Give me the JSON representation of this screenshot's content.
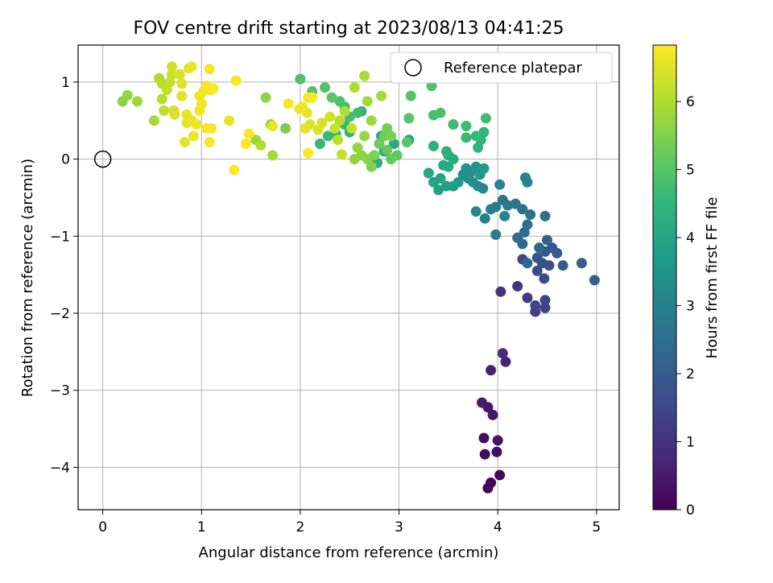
{
  "chart_data": {
    "type": "scatter",
    "title": "FOV centre drift starting at 2023/08/13 04:41:25",
    "xlabel": "Angular distance from reference (arcmin)",
    "ylabel": "Rotation from reference (arcmin)",
    "xlim": [
      -0.25,
      5.23
    ],
    "ylim": [
      -4.55,
      1.48
    ],
    "xticks": [
      0,
      1,
      2,
      3,
      4,
      5
    ],
    "yticks": [
      1,
      0,
      -1,
      -2,
      -3,
      -4
    ],
    "xtick_labels": [
      "0",
      "1",
      "2",
      "3",
      "4",
      "5"
    ],
    "ytick_labels": [
      "1",
      "0",
      "−1",
      "−2",
      "−3",
      "−4"
    ],
    "grid": true,
    "legend": {
      "placement": "top-right",
      "label": "Reference platepar"
    },
    "reference_point": {
      "x": 0,
      "y": 0
    },
    "colorbar": {
      "label": "Hours from first FF file",
      "range": [
        0,
        6.83
      ],
      "ticks": [
        0,
        1,
        2,
        3,
        4,
        5,
        6
      ],
      "tick_labels": [
        "0",
        "1",
        "2",
        "3",
        "4",
        "5",
        "6"
      ],
      "colormap": [
        "#440154",
        "#482878",
        "#3e4989",
        "#31688e",
        "#26828e",
        "#1f9e89",
        "#35b779",
        "#6ece58",
        "#b5de2b",
        "#fde725"
      ]
    },
    "series": [
      {
        "points": [
          [
            3.9,
            -4.27,
            0.05
          ],
          [
            3.93,
            -4.2,
            0.1
          ],
          [
            4.02,
            -4.1,
            0.15
          ],
          [
            3.87,
            -3.83,
            0.2
          ],
          [
            3.99,
            -3.8,
            0.25
          ],
          [
            3.86,
            -3.62,
            0.3
          ],
          [
            4.0,
            -3.65,
            0.35
          ],
          [
            3.95,
            -3.32,
            0.4
          ],
          [
            3.9,
            -3.22,
            0.45
          ],
          [
            3.84,
            -3.16,
            0.5
          ],
          [
            3.93,
            -2.74,
            0.6
          ],
          [
            4.08,
            -2.63,
            0.7
          ],
          [
            4.05,
            -2.52,
            0.8
          ],
          [
            4.03,
            -1.72,
            1.0
          ],
          [
            4.2,
            -1.65,
            1.1
          ],
          [
            4.3,
            -1.8,
            1.2
          ],
          [
            4.38,
            -1.98,
            1.3
          ],
          [
            4.48,
            -1.93,
            1.35
          ],
          [
            4.48,
            -1.83,
            1.4
          ],
          [
            4.38,
            -1.9,
            1.45
          ],
          [
            4.25,
            -1.3,
            1.5
          ],
          [
            4.4,
            -1.45,
            1.55
          ],
          [
            4.47,
            -1.55,
            1.6
          ],
          [
            4.52,
            -1.38,
            1.65
          ],
          [
            4.45,
            -1.35,
            1.7
          ],
          [
            4.4,
            -1.28,
            1.75
          ],
          [
            4.48,
            -1.2,
            1.8
          ],
          [
            4.55,
            -1.15,
            1.85
          ],
          [
            4.6,
            -1.22,
            1.9
          ],
          [
            4.66,
            -1.38,
            1.95
          ],
          [
            4.85,
            -1.35,
            2.0
          ],
          [
            4.98,
            -1.57,
            2.1
          ],
          [
            4.5,
            -1.05,
            2.15
          ],
          [
            4.42,
            -1.15,
            2.2
          ],
          [
            4.3,
            -1.35,
            2.25
          ],
          [
            4.25,
            -1.1,
            2.3
          ],
          [
            4.2,
            -1.02,
            2.35
          ],
          [
            4.27,
            -0.95,
            2.4
          ],
          [
            4.3,
            -0.85,
            2.45
          ],
          [
            4.48,
            -0.74,
            2.5
          ],
          [
            4.33,
            -0.72,
            2.55
          ],
          [
            4.25,
            -0.65,
            2.6
          ],
          [
            4.18,
            -0.58,
            2.65
          ],
          [
            4.1,
            -0.6,
            2.7
          ],
          [
            4.05,
            -0.53,
            2.75
          ],
          [
            3.98,
            -0.62,
            2.8
          ],
          [
            3.93,
            -0.65,
            2.85
          ],
          [
            3.98,
            -0.98,
            2.9
          ],
          [
            3.87,
            -0.77,
            2.95
          ],
          [
            4.07,
            -0.74,
            3.0
          ],
          [
            4.02,
            -0.33,
            3.05
          ],
          [
            4.28,
            -0.24,
            3.1
          ],
          [
            4.3,
            -0.3,
            3.15
          ],
          [
            3.78,
            -0.68,
            3.2
          ],
          [
            3.85,
            -0.38,
            3.25
          ],
          [
            3.8,
            -0.35,
            3.3
          ],
          [
            3.75,
            -0.3,
            3.35
          ],
          [
            3.7,
            -0.25,
            3.4
          ],
          [
            3.65,
            -0.2,
            3.45
          ],
          [
            3.72,
            -0.18,
            3.5
          ],
          [
            3.68,
            -0.12,
            3.55
          ],
          [
            3.78,
            -0.1,
            3.6
          ],
          [
            3.82,
            -0.2,
            3.65
          ],
          [
            3.86,
            -0.12,
            3.7
          ],
          [
            3.6,
            -0.3,
            3.75
          ],
          [
            3.55,
            -0.35,
            3.8
          ],
          [
            3.48,
            -0.35,
            3.85
          ],
          [
            3.4,
            -0.4,
            3.9
          ],
          [
            3.35,
            -0.3,
            3.95
          ],
          [
            3.42,
            -0.25,
            4.0
          ],
          [
            3.3,
            -0.18,
            4.05
          ],
          [
            3.45,
            -0.08,
            4.1
          ],
          [
            3.5,
            -0.1,
            4.15
          ],
          [
            3.55,
            0.0,
            4.2
          ],
          [
            3.5,
            0.05,
            4.25
          ],
          [
            3.48,
            0.1,
            4.3
          ],
          [
            3.35,
            0.17,
            4.35
          ],
          [
            3.8,
            0.15,
            4.4
          ],
          [
            3.83,
            0.25,
            4.45
          ],
          [
            3.86,
            0.35,
            4.5
          ],
          [
            3.78,
            0.3,
            4.55
          ],
          [
            3.68,
            0.28,
            4.6
          ],
          [
            3.68,
            0.43,
            4.65
          ],
          [
            3.55,
            0.45,
            4.7
          ],
          [
            3.88,
            0.53,
            4.75
          ],
          [
            3.35,
            0.57,
            4.8
          ],
          [
            3.42,
            0.6,
            4.85
          ],
          [
            3.33,
            0.95,
            4.9
          ],
          [
            3.12,
            0.82,
            4.95
          ],
          [
            3.1,
            0.53,
            5.0
          ],
          [
            3.08,
            0.22,
            5.05
          ],
          [
            2.98,
            0.05,
            5.1
          ],
          [
            2.92,
            0.0,
            5.15
          ],
          [
            2.88,
            0.12,
            5.2
          ],
          [
            2.8,
            0.2,
            5.25
          ],
          [
            2.85,
            0.3,
            5.3
          ],
          [
            2.88,
            0.4,
            5.35
          ],
          [
            2.92,
            0.3,
            5.4
          ],
          [
            2.75,
            0.05,
            5.45
          ],
          [
            2.72,
            -0.1,
            5.5
          ],
          [
            2.68,
            0.0,
            5.55
          ],
          [
            2.62,
            0.05,
            5.6
          ],
          [
            2.55,
            0.0,
            5.65
          ],
          [
            2.58,
            0.15,
            5.7
          ],
          [
            2.65,
            0.3,
            5.75
          ],
          [
            2.72,
            0.5,
            5.8
          ],
          [
            2.68,
            0.75,
            5.85
          ],
          [
            2.82,
            0.82,
            5.9
          ],
          [
            2.65,
            1.08,
            5.95
          ],
          [
            2.55,
            0.93,
            6.0
          ],
          [
            2.45,
            0.62,
            6.05
          ],
          [
            2.4,
            0.5,
            6.1
          ],
          [
            2.38,
            0.25,
            6.15
          ],
          [
            2.42,
            0.06,
            6.2
          ],
          [
            2.52,
            0.4,
            6.25
          ],
          [
            2.35,
            0.4,
            6.3
          ],
          [
            2.3,
            0.55,
            6.35
          ],
          [
            2.22,
            0.47,
            6.4
          ],
          [
            2.18,
            0.38,
            6.45
          ],
          [
            2.1,
            0.45,
            6.5
          ],
          [
            2.05,
            0.4,
            6.55
          ],
          [
            2.07,
            0.6,
            6.6
          ],
          [
            2.02,
            0.68,
            6.65
          ],
          [
            1.99,
            0.65,
            6.7
          ],
          [
            2.08,
            0.8,
            6.75
          ]
        ]
      }
    ],
    "series_late": [
      [
        2.0,
        1.04,
        4.9
      ],
      [
        2.12,
        0.88,
        5.0
      ],
      [
        2.25,
        0.93,
        4.95
      ],
      [
        2.32,
        0.8,
        5.05
      ],
      [
        2.4,
        0.75,
        4.85
      ],
      [
        2.45,
        0.68,
        4.8
      ],
      [
        2.5,
        0.55,
        4.75
      ],
      [
        2.58,
        0.6,
        4.7
      ],
      [
        2.28,
        0.3,
        4.6
      ],
      [
        2.2,
        0.2,
        4.55
      ],
      [
        2.36,
        0.33,
        4.5
      ],
      [
        2.45,
        0.45,
        4.45
      ],
      [
        2.5,
        0.35,
        4.4
      ],
      [
        2.62,
        0.62,
        4.35
      ],
      [
        2.7,
        0.0,
        4.3
      ],
      [
        2.78,
        -0.05,
        4.25
      ],
      [
        2.85,
        0.1,
        4.2
      ],
      [
        2.95,
        0.2,
        4.15
      ],
      [
        2.82,
        0.3,
        4.1
      ],
      [
        3.1,
        0.25,
        4.05
      ],
      [
        1.85,
        0.4,
        5.4
      ],
      [
        1.65,
        0.8,
        5.6
      ],
      [
        1.7,
        0.45,
        5.7
      ],
      [
        1.55,
        0.25,
        5.8
      ],
      [
        1.72,
        0.05,
        5.9
      ],
      [
        1.6,
        0.18,
        6.0
      ]
    ],
    "series_early_yellow": [
      [
        0.2,
        0.75,
        5.6
      ],
      [
        0.25,
        0.83,
        5.7
      ],
      [
        0.35,
        0.75,
        5.8
      ],
      [
        0.52,
        0.5,
        5.9
      ],
      [
        0.57,
        1.05,
        6.0
      ],
      [
        0.6,
        0.78,
        6.05
      ],
      [
        0.6,
        0.98,
        6.1
      ],
      [
        0.62,
        0.63,
        6.15
      ],
      [
        0.65,
        0.9,
        6.2
      ],
      [
        0.68,
        1.0,
        6.25
      ],
      [
        0.7,
        1.1,
        6.3
      ],
      [
        0.7,
        1.2,
        6.35
      ],
      [
        0.72,
        0.63,
        6.4
      ],
      [
        0.73,
        0.58,
        6.45
      ],
      [
        0.78,
        1.1,
        6.45
      ],
      [
        0.8,
        0.98,
        6.5
      ],
      [
        0.8,
        0.82,
        6.5
      ],
      [
        0.83,
        0.22,
        6.55
      ],
      [
        0.85,
        0.47,
        6.55
      ],
      [
        0.85,
        0.58,
        6.6
      ],
      [
        0.87,
        1.18,
        6.6
      ],
      [
        0.9,
        1.2,
        6.62
      ],
      [
        0.9,
        0.5,
        6.64
      ],
      [
        0.92,
        0.3,
        6.65
      ],
      [
        0.95,
        0.45,
        6.66
      ],
      [
        0.98,
        0.82,
        6.68
      ],
      [
        0.98,
        0.63,
        6.7
      ],
      [
        1.0,
        0.72,
        6.7
      ],
      [
        1.02,
        0.88,
        6.72
      ],
      [
        1.05,
        0.95,
        6.73
      ],
      [
        1.05,
        0.4,
        6.74
      ],
      [
        1.08,
        0.22,
        6.75
      ],
      [
        1.1,
        0.9,
        6.76
      ],
      [
        1.1,
        0.4,
        6.77
      ],
      [
        1.08,
        1.17,
        6.78
      ],
      [
        1.12,
        0.92,
        6.8
      ],
      [
        1.28,
        0.5,
        6.6
      ],
      [
        1.35,
        1.02,
        6.82
      ],
      [
        1.33,
        -0.14,
        6.83
      ],
      [
        1.45,
        0.2,
        6.8
      ],
      [
        1.48,
        0.33,
        6.78
      ],
      [
        1.88,
        0.72,
        6.75
      ],
      [
        2.08,
        0.08,
        6.83
      ],
      [
        2.12,
        0.8,
        6.82
      ],
      [
        1.72,
        0.43,
        6.6
      ]
    ]
  }
}
